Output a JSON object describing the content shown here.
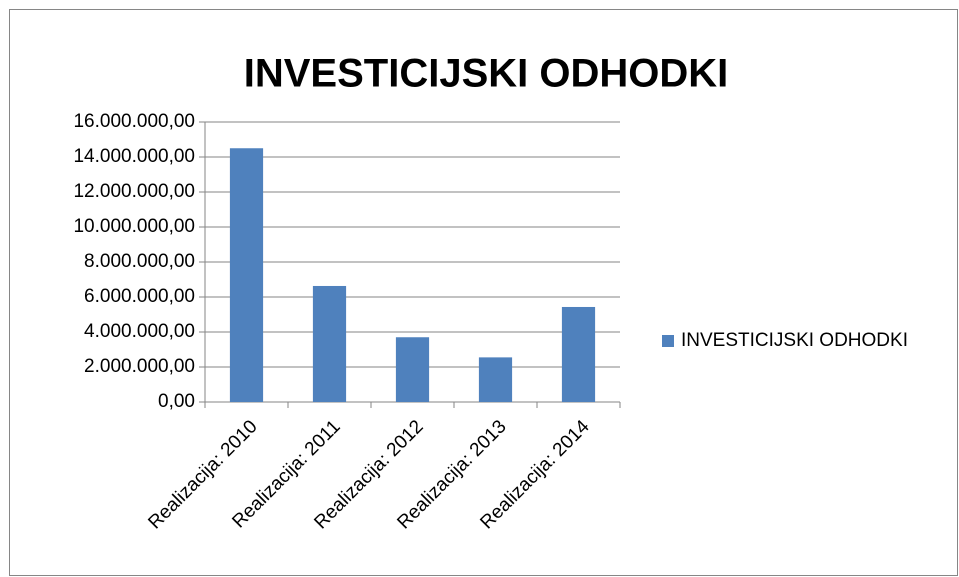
{
  "chart_data": {
    "type": "bar",
    "title": "INVESTICIJSKI ODHODKI",
    "categories": [
      "Realizacija: 2010",
      "Realizacija: 2011",
      "Realizacija: 2012",
      "Realizacija: 2013",
      "Realizacija: 2014"
    ],
    "series": [
      {
        "name": "INVESTICIJSKI ODHODKI",
        "color": "#4f81bd",
        "values": [
          14500000,
          6630000,
          3700000,
          2550000,
          5430000
        ]
      }
    ],
    "ylim": [
      0,
      16000000
    ],
    "yticks": [
      {
        "value": 0,
        "label": "0,00"
      },
      {
        "value": 2000000,
        "label": "2.000.000,00"
      },
      {
        "value": 4000000,
        "label": "4.000.000,00"
      },
      {
        "value": 6000000,
        "label": "6.000.000,00"
      },
      {
        "value": 8000000,
        "label": "8.000.000,00"
      },
      {
        "value": 10000000,
        "label": "10.000.000,00"
      },
      {
        "value": 12000000,
        "label": "12.000.000,00"
      },
      {
        "value": 14000000,
        "label": "14.000.000,00"
      },
      {
        "value": 16000000,
        "label": "16.000.000,00"
      }
    ],
    "grid": true,
    "legend": "right"
  }
}
